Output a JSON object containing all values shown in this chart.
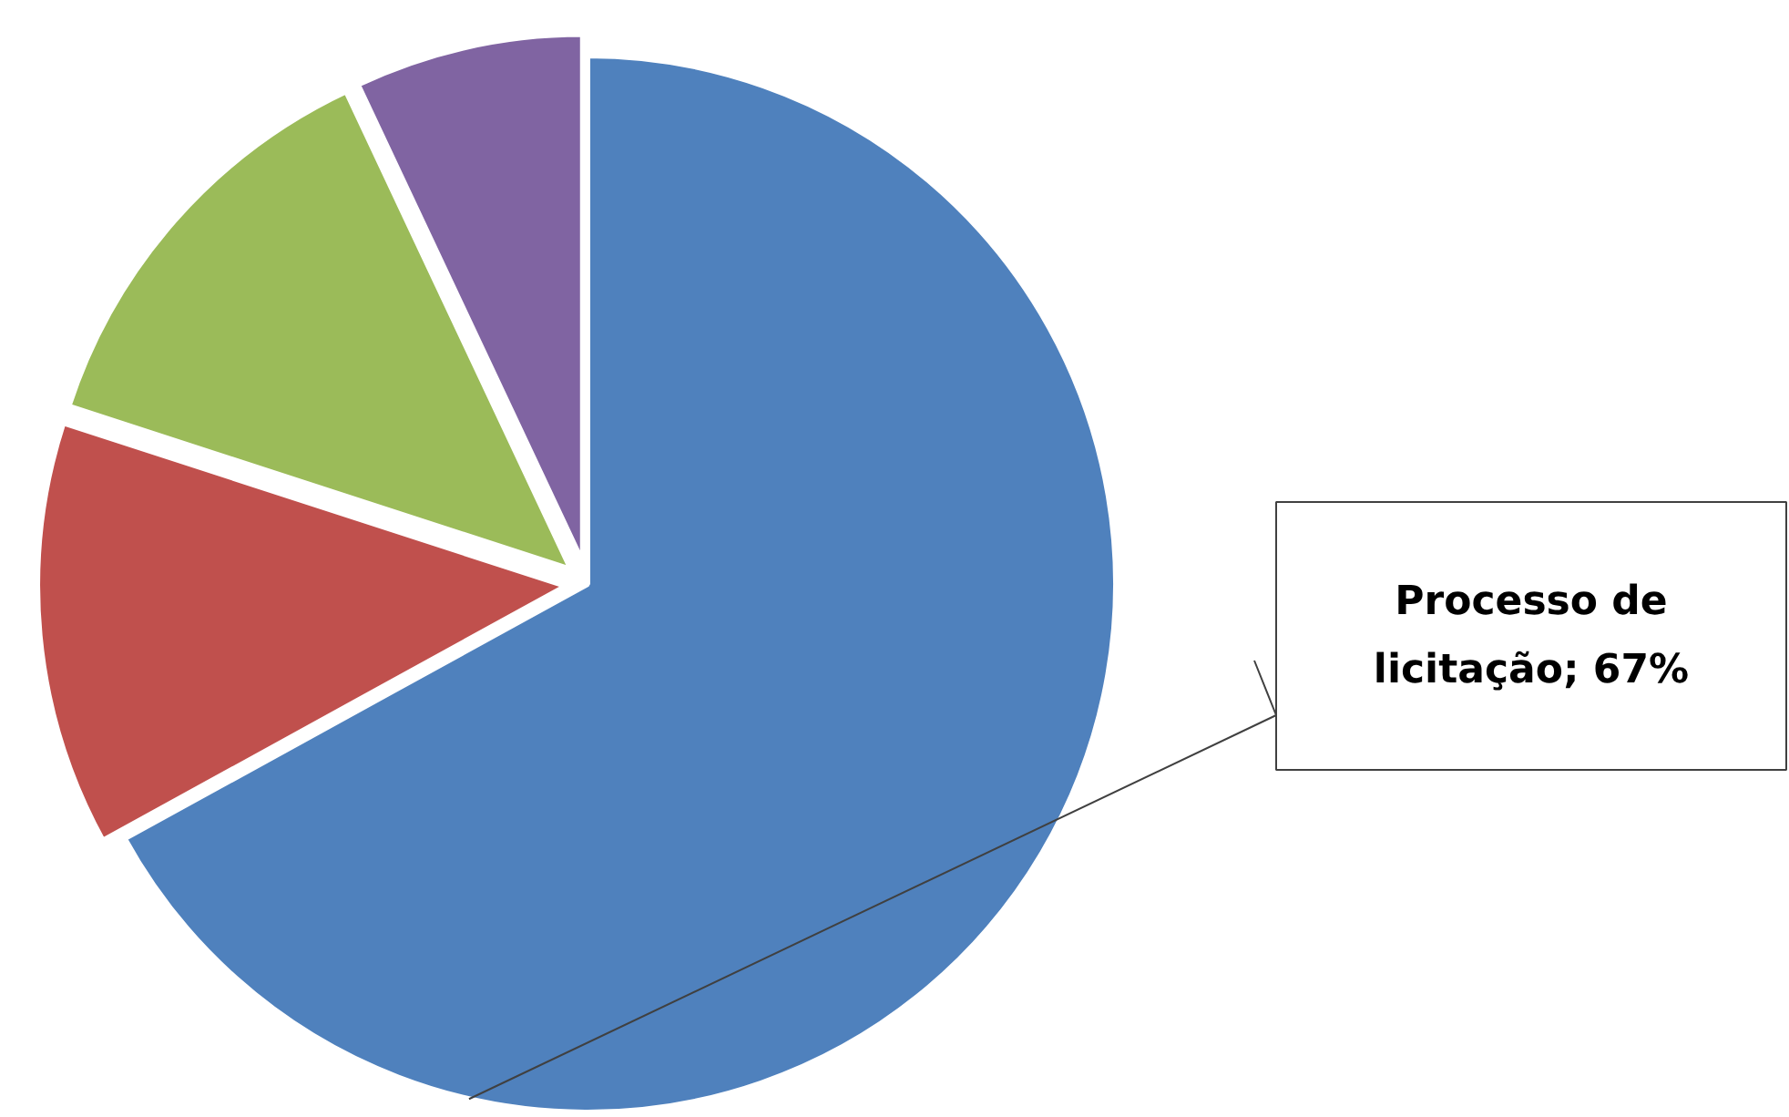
{
  "chart_data": {
    "type": "pie",
    "categories": [
      "Processo de licitação",
      null,
      null,
      null
    ],
    "values": [
      67,
      13,
      13,
      7
    ],
    "colors": [
      "#4f81bd",
      "#c0504d",
      "#9bbb59",
      "#8064a2"
    ],
    "value_labels": [
      "67%",
      null,
      null,
      null
    ]
  }
}
